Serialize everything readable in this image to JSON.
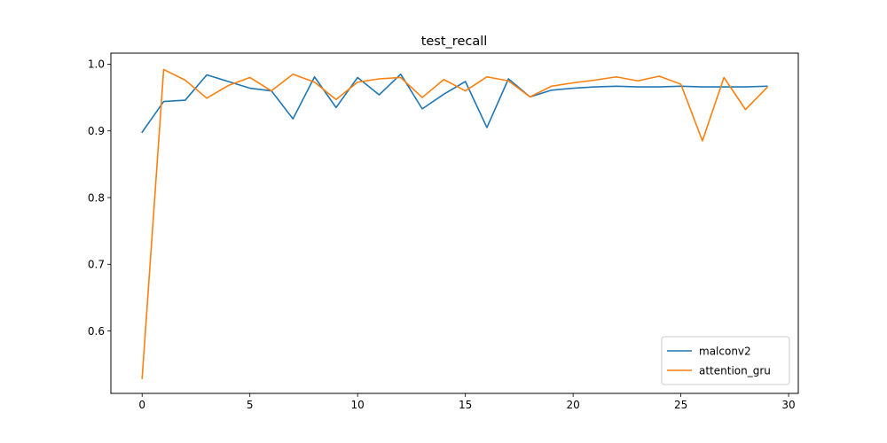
{
  "chart_data": {
    "type": "line",
    "title": "test_recall",
    "xlabel": "",
    "ylabel": "",
    "xlim": [
      -1.45,
      30.45
    ],
    "ylim": [
      0.5065,
      1.0165
    ],
    "xticks": [
      0,
      5,
      10,
      15,
      20,
      25,
      30
    ],
    "yticks": [
      0.6,
      0.7,
      0.8,
      0.9,
      1.0
    ],
    "ytick_labels": [
      "0.6",
      "0.7",
      "0.8",
      "0.9",
      "1.0"
    ],
    "grid": false,
    "legend_position": "lower-right",
    "x": [
      0,
      1,
      2,
      3,
      4,
      5,
      6,
      7,
      8,
      9,
      10,
      11,
      12,
      13,
      14,
      15,
      16,
      17,
      18,
      19,
      20,
      21,
      22,
      23,
      24,
      25,
      26,
      27,
      28,
      29
    ],
    "series": [
      {
        "name": "malconv2",
        "color": "#1f77b4",
        "values": [
          0.898,
          0.944,
          0.946,
          0.984,
          0.974,
          0.964,
          0.96,
          0.918,
          0.981,
          0.935,
          0.98,
          0.954,
          0.985,
          0.933,
          0.955,
          0.974,
          0.905,
          0.978,
          0.951,
          0.961,
          0.964,
          0.966,
          0.967,
          0.966,
          0.966,
          0.967,
          0.966,
          0.966,
          0.966,
          0.967
        ]
      },
      {
        "name": "attention_gru",
        "color": "#ff7f0e",
        "values": [
          0.529,
          0.992,
          0.976,
          0.949,
          0.968,
          0.98,
          0.96,
          0.985,
          0.973,
          0.947,
          0.973,
          0.978,
          0.98,
          0.95,
          0.977,
          0.96,
          0.981,
          0.975,
          0.951,
          0.967,
          0.972,
          0.976,
          0.981,
          0.975,
          0.982,
          0.97,
          0.885,
          0.98,
          0.932,
          0.965
        ]
      }
    ]
  }
}
